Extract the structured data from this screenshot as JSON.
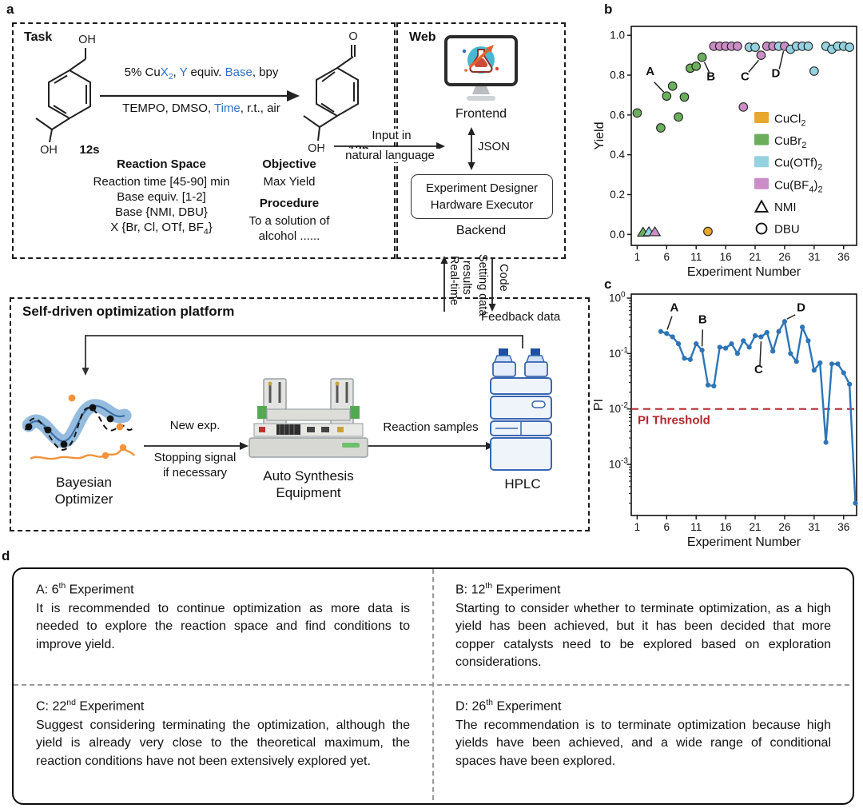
{
  "panel_labels": {
    "a": "a",
    "b": "b",
    "c": "c",
    "d": "d"
  },
  "task": {
    "title": "Task",
    "mol_left": {
      "oh_top": "OH",
      "oh_bottom": "OH",
      "name": "12s"
    },
    "mol_right": {
      "o_top": "O",
      "oh_bottom": "OH",
      "name": "12p"
    },
    "cond_top": {
      "s1": "5% Cu",
      "s2": "X",
      "s2sub": "2",
      "s3": ", ",
      "s4": "Y",
      "s5": " equiv. ",
      "s6": "Base",
      "s7": ", bpy"
    },
    "cond_bottom": {
      "s1": "TEMPO, DMSO, ",
      "s2": "Time",
      "s3": ", r.t., air"
    },
    "reaction_space": {
      "header": "Reaction Space",
      "line1": "Reaction time [45-90] min",
      "line2": "Base equiv. [1-2]",
      "line3": "Base {NMI, DBU}",
      "line4a": "X {Br, Cl, OTf, BF",
      "line4sub": "4",
      "line4b": "}"
    },
    "objective": {
      "header": "Objective",
      "line1": "Max Yield"
    },
    "procedure": {
      "header": "Procedure",
      "line1": "To a solution of",
      "line2": "alcohol ......"
    }
  },
  "input_arrow": {
    "line1": "Input in",
    "line2": "natural language"
  },
  "web": {
    "title": "Web",
    "frontend": "Frontend",
    "json_label": "JSON",
    "designer_line1": "Experiment Designer",
    "designer_line2": "Hardware Executor",
    "backend": "Backend"
  },
  "data_flow": {
    "up1": "Real-time",
    "up2": "results",
    "down1": "Setting data",
    "down2": "Code"
  },
  "platform": {
    "title": "Self-driven optimization platform",
    "feedback": "Feedback data",
    "new_exp": "New exp.",
    "stopping1": "Stopping signal",
    "stopping2": "if necessary",
    "reaction_samples": "Reaction samples",
    "bayes1": "Bayesian",
    "bayes2": "Optimizer",
    "equip1": "Auto Synthesis",
    "equip2": "Equipment",
    "hplc": "HPLC"
  },
  "chart_data": [
    {
      "id": "chart-b",
      "type": "scatter",
      "xlabel": "Experiment Number",
      "ylabel": "Yield",
      "xlim": [
        0,
        38.2
      ],
      "xticks": [
        1,
        6,
        11,
        16,
        21,
        26,
        31,
        36
      ],
      "ylim": [
        -0.055,
        1.045
      ],
      "yticks": [
        [
          "0.0",
          0
        ],
        [
          "0.2",
          0.2
        ],
        [
          "0.4",
          0.4
        ],
        [
          "0.6",
          0.6
        ],
        [
          "0.8",
          0.8
        ],
        [
          "1.0",
          1.0
        ]
      ],
      "colors": {
        "CuCl2": "#E9A72C",
        "CuBr2": "#6BAE5C",
        "CuOTf2": "#95D2E0",
        "CuBF42": "#CB8DC6"
      },
      "nmi_points": [
        [
          2,
          0.01,
          "CuBr2"
        ],
        [
          3,
          0.012,
          "CuOTf2"
        ],
        [
          4,
          0.012,
          "CuBF42"
        ]
      ],
      "dbu_points": [
        [
          1,
          0.61,
          "CuBr2"
        ],
        [
          5,
          0.535,
          "CuBr2"
        ],
        [
          6,
          0.695,
          "CuBr2"
        ],
        [
          7,
          0.745,
          "CuBr2"
        ],
        [
          8,
          0.59,
          "CuBr2"
        ],
        [
          9,
          0.69,
          "CuBr2"
        ],
        [
          10,
          0.835,
          "CuBr2"
        ],
        [
          11,
          0.845,
          "CuBr2"
        ],
        [
          12,
          0.89,
          "CuBr2"
        ],
        [
          13,
          0.015,
          "CuCl2"
        ],
        [
          14,
          0.945,
          "CuBF42"
        ],
        [
          15,
          0.945,
          "CuBF42"
        ],
        [
          16,
          0.945,
          "CuBF42"
        ],
        [
          17,
          0.945,
          "CuBF42"
        ],
        [
          18,
          0.945,
          "CuBF42"
        ],
        [
          19,
          0.64,
          "CuBF42"
        ],
        [
          20,
          0.94,
          "CuOTf2"
        ],
        [
          21,
          0.94,
          "CuOTf2"
        ],
        [
          22,
          0.9,
          "CuBF42"
        ],
        [
          23,
          0.945,
          "CuBF42"
        ],
        [
          24,
          0.945,
          "CuBF42"
        ],
        [
          25,
          0.945,
          "CuOTf2"
        ],
        [
          26,
          0.945,
          "CuBF42"
        ],
        [
          27,
          0.93,
          "CuOTf2"
        ],
        [
          28,
          0.945,
          "CuOTf2"
        ],
        [
          29,
          0.945,
          "CuOTf2"
        ],
        [
          30,
          0.945,
          "CuOTf2"
        ],
        [
          31,
          0.82,
          "CuOTf2"
        ],
        [
          33,
          0.945,
          "CuOTf2"
        ],
        [
          34,
          0.93,
          "CuOTf2"
        ],
        [
          35,
          0.945,
          "CuOTf2"
        ],
        [
          36,
          0.945,
          "CuOTf2"
        ],
        [
          37,
          0.94,
          "CuOTf2"
        ]
      ],
      "legend": [
        {
          "type": "swatch",
          "color": "#E9A72C",
          "segs": [
            [
              "CuCl",
              0
            ],
            [
              "2",
              1
            ]
          ]
        },
        {
          "type": "swatch",
          "color": "#6BAE5C",
          "segs": [
            [
              "CuBr",
              0
            ],
            [
              "2",
              1
            ]
          ]
        },
        {
          "type": "swatch",
          "color": "#95D2E0",
          "segs": [
            [
              "Cu(OTf)",
              0
            ],
            [
              "2",
              1
            ]
          ]
        },
        {
          "type": "swatch",
          "color": "#CB8DC6",
          "segs": [
            [
              "Cu(BF",
              0
            ],
            [
              "4",
              1
            ],
            [
              ")",
              0
            ],
            [
              "2",
              1
            ]
          ]
        },
        {
          "type": "triangle",
          "segs": [
            [
              "NMI",
              0
            ]
          ]
        },
        {
          "type": "circle",
          "segs": [
            [
              "DBU",
              0
            ]
          ]
        }
      ],
      "annotations": [
        {
          "text": "A",
          "tx": 3.2,
          "ty": 0.8,
          "x1": 3.9,
          "y1": 0.765,
          "x2": 5.5,
          "y2": 0.715
        },
        {
          "text": "B",
          "tx": 13.5,
          "ty": 0.775,
          "x1": 13.2,
          "y1": 0.815,
          "x2": 12.4,
          "y2": 0.865
        },
        {
          "text": "C",
          "tx": 19.3,
          "ty": 0.775,
          "x1": 19.9,
          "y1": 0.815,
          "x2": 21.6,
          "y2": 0.875
        },
        {
          "text": "D",
          "tx": 24.5,
          "ty": 0.79,
          "x1": 25.1,
          "y1": 0.83,
          "x2": 25.8,
          "y2": 0.92
        }
      ]
    },
    {
      "id": "chart-c",
      "type": "line",
      "xlabel": "Experiment Number",
      "ylabel": "PI",
      "xlim": [
        0,
        38.2
      ],
      "xticks": [
        1,
        6,
        11,
        16,
        21,
        26,
        31,
        36
      ],
      "yscale": "log",
      "ylim": [
        0.00012,
        1.18
      ],
      "yticks": [
        [
          "0",
          1
        ],
        [
          "-1",
          0.1
        ],
        [
          "-2",
          0.01
        ],
        [
          "-3",
          0.001
        ]
      ],
      "line_color": "#2E75B6",
      "x": [
        5,
        6,
        7,
        8,
        9,
        10,
        11,
        12,
        13,
        14,
        15,
        16,
        17,
        18,
        19,
        20,
        21,
        22,
        23,
        24,
        25,
        26,
        27,
        28,
        29,
        30,
        31,
        32,
        33,
        34,
        35,
        36,
        37,
        38
      ],
      "y": [
        0.25,
        0.23,
        0.2,
        0.15,
        0.082,
        0.078,
        0.15,
        0.115,
        0.027,
        0.026,
        0.13,
        0.125,
        0.15,
        0.1,
        0.17,
        0.13,
        0.21,
        0.2,
        0.24,
        0.11,
        0.25,
        0.38,
        0.1,
        0.072,
        0.3,
        0.17,
        0.05,
        0.068,
        0.0025,
        0.065,
        0.065,
        0.045,
        0.028,
        0.0002
      ],
      "threshold": {
        "value": 0.01,
        "label": "PI Threshold",
        "color": "#B3282D"
      },
      "annotations": [
        {
          "text": "A",
          "tx": 7.3,
          "ty": 0.58,
          "x1": 6.9,
          "y1": 0.47,
          "x2": 6.1,
          "y2": 0.27
        },
        {
          "text": "B",
          "tx": 12.1,
          "ty": 0.35,
          "x1": 12.1,
          "y1": 0.27,
          "x2": 12.0,
          "y2": 0.135
        },
        {
          "text": "C",
          "tx": 21.6,
          "ty": 0.044,
          "x1": 21.8,
          "y1": 0.06,
          "x2": 22.0,
          "y2": 0.165
        },
        {
          "text": "D",
          "tx": 28.8,
          "ty": 0.58,
          "x1": 27.8,
          "y1": 0.5,
          "x2": 26.4,
          "y2": 0.42
        }
      ]
    }
  ],
  "notes": {
    "a": {
      "head_pre": "A: 6",
      "head_sup": "th",
      "head_post": " Experiment",
      "body": "It is recommended to continue optimization as more data is needed to explore the reaction space and find conditions to improve yield."
    },
    "b": {
      "head_pre": "B: 12",
      "head_sup": "th",
      "head_post": " Experiment",
      "body": "Starting to consider whether to terminate optimization, as a high yield has been achieved, but it has been decided that more copper catalysts need to be explored based on exploration considerations."
    },
    "c": {
      "head_pre": "C: 22",
      "head_sup": "nd",
      "head_post": " Experiment",
      "body": "Suggest considering terminating the optimization, although the yield is already very close to the theoretical maximum, the reaction conditions have not been extensively explored yet."
    },
    "d": {
      "head_pre": "D: 26",
      "head_sup": "th",
      "head_post": " Experiment",
      "body": "The recommendation is to terminate optimization because high yields have been achieved, and a wide range of conditional spaces have been explored."
    }
  }
}
